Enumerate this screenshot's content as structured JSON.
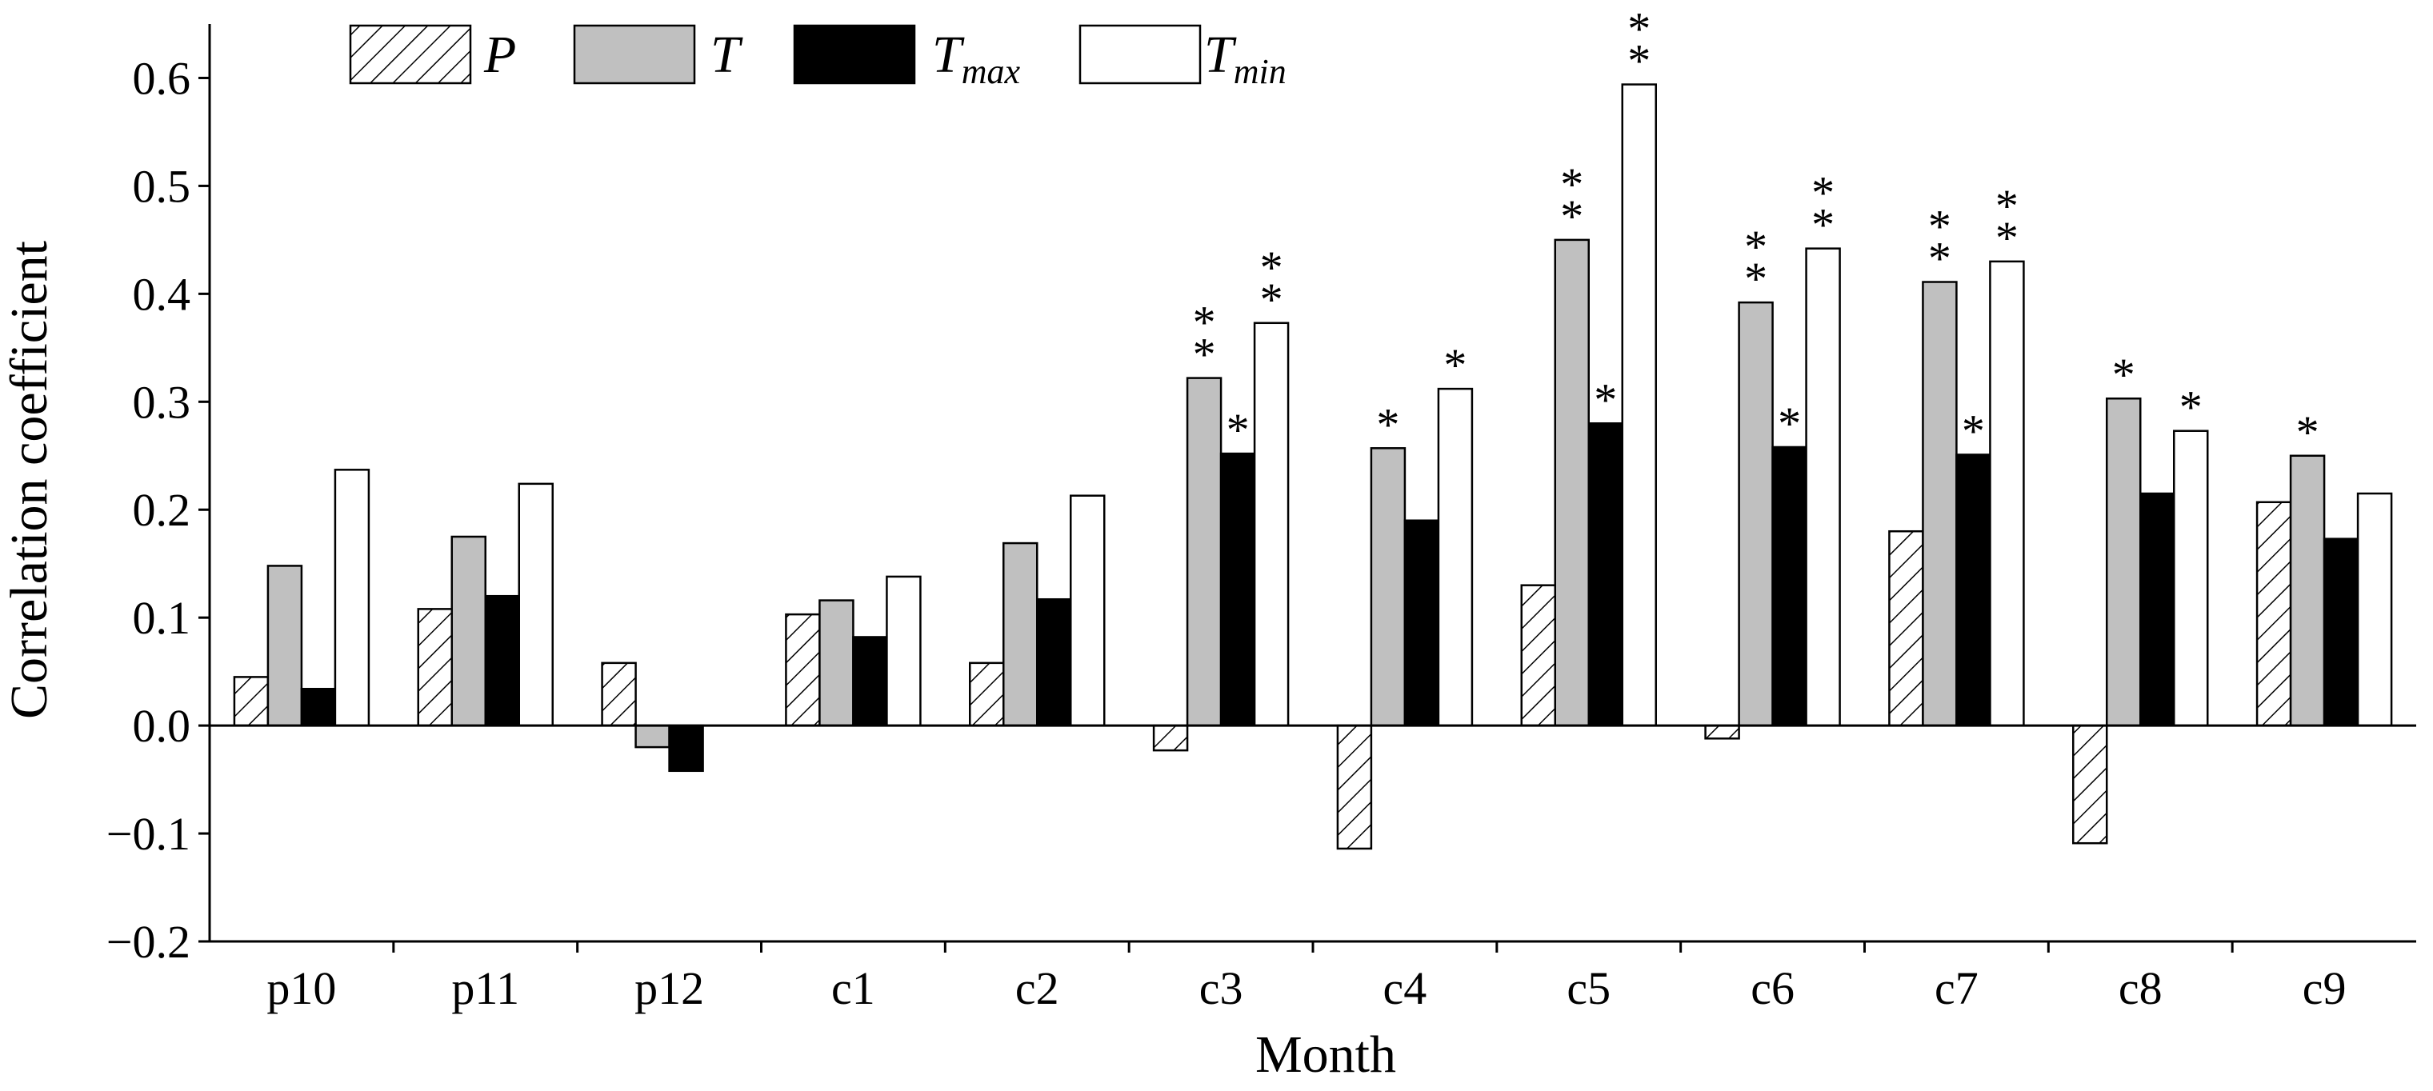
{
  "chart_data": {
    "type": "bar",
    "title": "",
    "xlabel": "Month",
    "ylabel": "Correlation coefficient",
    "ylim": [
      -0.2,
      0.65
    ],
    "yticks": [
      -0.2,
      -0.1,
      0.0,
      0.1,
      0.2,
      0.3,
      0.4,
      0.5,
      0.6
    ],
    "ytick_labels": [
      "−0.2",
      "−0.1",
      "0.0",
      "0.1",
      "0.2",
      "0.3",
      "0.4",
      "0.5",
      "0.6"
    ],
    "categories": [
      "p10",
      "p11",
      "p12",
      "c1",
      "c2",
      "c3",
      "c4",
      "c5",
      "c6",
      "c7",
      "c8",
      "c9"
    ],
    "legend_position": "top-left",
    "significance_marker": "*",
    "series": [
      {
        "name": "P",
        "sub": "",
        "pattern": "hatch",
        "values": [
          0.045,
          0.108,
          0.058,
          0.103,
          0.058,
          -0.023,
          -0.114,
          0.13,
          -0.012,
          0.18,
          -0.109,
          0.207
        ],
        "stars": [
          0,
          0,
          0,
          0,
          0,
          0,
          0,
          0,
          0,
          0,
          0,
          0
        ]
      },
      {
        "name": "T",
        "sub": "",
        "pattern": "gray",
        "values": [
          0.148,
          0.175,
          -0.02,
          0.116,
          0.169,
          0.322,
          0.257,
          0.45,
          0.392,
          0.411,
          0.303,
          0.25
        ],
        "stars": [
          0,
          0,
          0,
          0,
          0,
          2,
          1,
          2,
          2,
          2,
          1,
          1
        ]
      },
      {
        "name": "T",
        "sub": "max",
        "pattern": "black",
        "values": [
          0.034,
          0.12,
          -0.042,
          0.082,
          0.117,
          0.252,
          0.19,
          0.28,
          0.258,
          0.251,
          0.215,
          0.173
        ],
        "stars": [
          0,
          0,
          0,
          0,
          0,
          1,
          0,
          1,
          1,
          1,
          0,
          0
        ]
      },
      {
        "name": "T",
        "sub": "min",
        "pattern": "white",
        "values": [
          0.237,
          0.224,
          0.0,
          0.138,
          0.213,
          0.373,
          0.312,
          0.594,
          0.442,
          0.43,
          0.273,
          0.215
        ],
        "stars": [
          0,
          0,
          0,
          0,
          0,
          2,
          1,
          2,
          2,
          2,
          1,
          0
        ]
      }
    ]
  }
}
